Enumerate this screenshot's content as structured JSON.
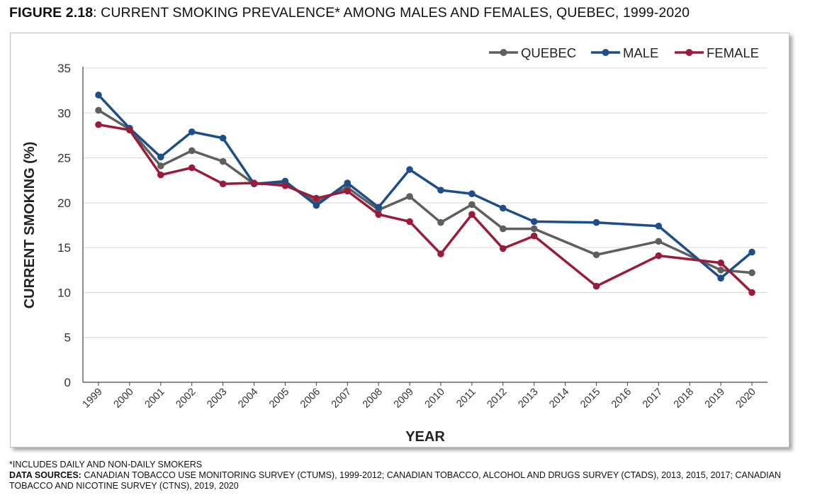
{
  "figure": {
    "title_lead": "FIGURE 2.18",
    "title_rest": ": CURRENT SMOKING PREVALENCE* AMONG MALES AND FEMALES, QUEBEC, 1999-2020"
  },
  "footnotes": {
    "note": "*INCLUDES DAILY AND NON-DAILY SMOKERS",
    "sources_label": "DATA SOURCES:",
    "sources_text": " CANADIAN TOBACCO USE MONITORING SURVEY (CTUMS), 1999-2012; CANADIAN TOBACCO, ALCOHOL AND DRUGS SURVEY (CTADS), 2013, 2015, 2017; CANADIAN TOBACCO AND NICOTINE SURVEY (CTNS), 2019, 2020"
  },
  "chart_data": {
    "type": "line",
    "title": "",
    "xlabel": "YEAR",
    "ylabel": "CURRENT SMOKING (%)",
    "ylim": [
      0,
      35
    ],
    "yticks": [
      0,
      5,
      10,
      15,
      20,
      25,
      30,
      35
    ],
    "categories": [
      "1999",
      "2000",
      "2001",
      "2002",
      "2003",
      "2004",
      "2005",
      "2006",
      "2007",
      "2008",
      "2009",
      "2010",
      "2011",
      "2012",
      "2013",
      "2014",
      "2015",
      "2016",
      "2017",
      "2018",
      "2019",
      "2020"
    ],
    "grid": true,
    "legend_position": "top-right",
    "series": [
      {
        "name": "QUEBEC",
        "color": "#5f5f5f",
        "points": [
          [
            "1999",
            30.3
          ],
          [
            "2000",
            28.2
          ],
          [
            "2001",
            24.1
          ],
          [
            "2002",
            25.8
          ],
          [
            "2003",
            24.6
          ],
          [
            "2004",
            22.1
          ],
          [
            "2005",
            22.1
          ],
          [
            "2006",
            20.1
          ],
          [
            "2007",
            21.7
          ],
          [
            "2008",
            19.2
          ],
          [
            "2009",
            20.7
          ],
          [
            "2010",
            17.8
          ],
          [
            "2011",
            19.8
          ],
          [
            "2012",
            17.1
          ],
          [
            "2013",
            17.1
          ],
          [
            "2015",
            14.2
          ],
          [
            "2017",
            15.7
          ],
          [
            "2019",
            12.5
          ],
          [
            "2020",
            12.2
          ]
        ]
      },
      {
        "name": "MALE",
        "color": "#1d4e89",
        "points": [
          [
            "1999",
            32.0
          ],
          [
            "2000",
            28.3
          ],
          [
            "2001",
            25.1
          ],
          [
            "2002",
            27.9
          ],
          [
            "2003",
            27.2
          ],
          [
            "2004",
            22.1
          ],
          [
            "2005",
            22.4
          ],
          [
            "2006",
            19.7
          ],
          [
            "2007",
            22.2
          ],
          [
            "2008",
            19.5
          ],
          [
            "2009",
            23.7
          ],
          [
            "2010",
            21.4
          ],
          [
            "2011",
            21.0
          ],
          [
            "2012",
            19.4
          ],
          [
            "2013",
            17.9
          ],
          [
            "2015",
            17.8
          ],
          [
            "2017",
            17.4
          ],
          [
            "2019",
            11.6
          ],
          [
            "2020",
            14.5
          ]
        ]
      },
      {
        "name": "FEMALE",
        "color": "#9b1b3a",
        "points": [
          [
            "1999",
            28.7
          ],
          [
            "2000",
            28.1
          ],
          [
            "2001",
            23.1
          ],
          [
            "2002",
            23.9
          ],
          [
            "2003",
            22.1
          ],
          [
            "2004",
            22.2
          ],
          [
            "2005",
            21.9
          ],
          [
            "2006",
            20.5
          ],
          [
            "2007",
            21.3
          ],
          [
            "2008",
            18.7
          ],
          [
            "2009",
            17.9
          ],
          [
            "2010",
            14.3
          ],
          [
            "2011",
            18.7
          ],
          [
            "2012",
            14.9
          ],
          [
            "2013",
            16.3
          ],
          [
            "2015",
            10.7
          ],
          [
            "2017",
            14.1
          ],
          [
            "2019",
            13.3
          ],
          [
            "2020",
            10.0
          ]
        ]
      }
    ]
  }
}
